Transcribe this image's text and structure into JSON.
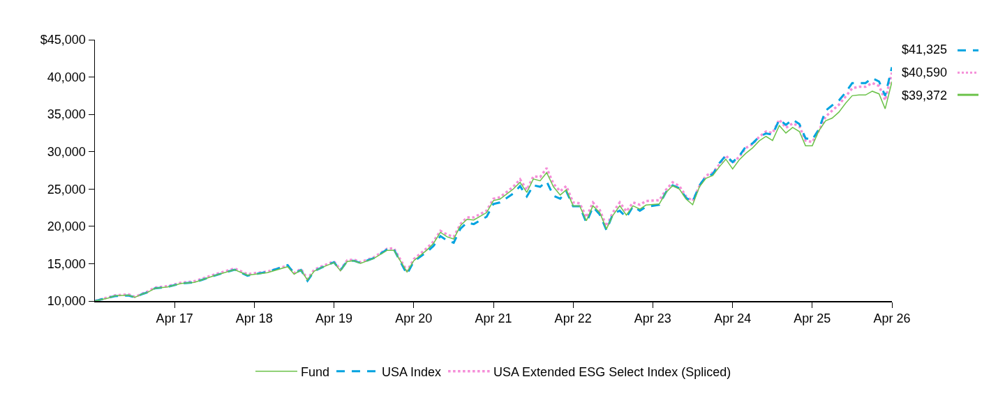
{
  "chart_data": {
    "type": "line",
    "x": [
      "2016-04",
      "2016-06",
      "2016-07",
      "2016-09",
      "2016-10",
      "2016-11",
      "2016-12",
      "2017-01",
      "2017-03",
      "2017-05",
      "2017-07",
      "2017-08",
      "2017-10",
      "2018-01",
      "2018-03",
      "2018-06",
      "2018-09",
      "2018-10",
      "2018-11",
      "2018-12",
      "2019-01",
      "2019-02",
      "2019-04",
      "2019-05",
      "2019-06",
      "2019-07",
      "2019-08",
      "2019-10",
      "2019-12",
      "2020-01",
      "2020-03",
      "2020-04",
      "2020-06",
      "2020-07",
      "2020-08",
      "2020-09",
      "2020-10",
      "2020-11",
      "2020-12",
      "2021-01",
      "2021-03",
      "2021-04",
      "2021-05",
      "2021-07",
      "2021-08",
      "2021-09",
      "2021-10",
      "2021-11",
      "2021-12",
      "2022-01",
      "2022-02",
      "2022-03",
      "2022-04",
      "2022-05",
      "2022-06",
      "2022-07",
      "2022-08",
      "2022-09",
      "2022-10",
      "2022-11",
      "2022-12",
      "2023-01",
      "2023-02",
      "2023-03",
      "2023-05",
      "2023-06",
      "2023-07",
      "2023-08",
      "2023-09",
      "2023-10",
      "2023-11",
      "2023-12",
      "2024-01",
      "2024-02",
      "2024-03",
      "2024-04",
      "2024-05",
      "2024-06",
      "2024-07",
      "2024-08",
      "2024-09",
      "2024-10",
      "2024-11",
      "2024-12",
      "2025-01",
      "2025-02",
      "2025-03",
      "2025-04",
      "2025-05",
      "2025-06",
      "2025-07",
      "2025-08",
      "2025-09",
      "2025-10",
      "2025-11",
      "2025-12",
      "2026-01",
      "2026-02",
      "2026-03",
      "2026-04"
    ],
    "series": [
      {
        "name": "Fund",
        "color": "#6cc24a",
        "line_style": "solid",
        "values": [
          10000,
          10400,
          10700,
          10800,
          10500,
          10900,
          11200,
          11700,
          11900,
          12350,
          12500,
          12800,
          13400,
          14200,
          13450,
          13800,
          14600,
          13600,
          14150,
          12800,
          14000,
          14450,
          15150,
          14050,
          15300,
          15400,
          15050,
          15700,
          16800,
          16800,
          13900,
          15400,
          16850,
          17750,
          19200,
          18600,
          18300,
          20100,
          20950,
          20850,
          21850,
          23450,
          23650,
          25000,
          25900,
          24550,
          26350,
          26100,
          27200,
          25300,
          24200,
          24900,
          22750,
          22750,
          20750,
          22750,
          21850,
          19650,
          21500,
          22750,
          21500,
          22750,
          22300,
          22850,
          23000,
          24550,
          25450,
          25000,
          23650,
          22900,
          25300,
          26450,
          26800,
          28000,
          29000,
          27700,
          28900,
          29800,
          30500,
          31450,
          32050,
          31500,
          33500,
          32500,
          33250,
          32700,
          30800,
          30800,
          32800,
          34150,
          34500,
          35300,
          36500,
          37500,
          37600,
          37600,
          38100,
          37750,
          35750,
          39372
        ]
      },
      {
        "name": "USA Index",
        "color": "#00a3e0",
        "line_style": "dashed",
        "values": [
          10000,
          10450,
          10650,
          10750,
          10500,
          10900,
          11200,
          11700,
          11900,
          12350,
          12500,
          12800,
          13400,
          14200,
          13400,
          13900,
          14800,
          13700,
          14150,
          12700,
          14000,
          14450,
          15200,
          14100,
          15350,
          15400,
          15100,
          15750,
          16900,
          16900,
          13600,
          15300,
          16600,
          17400,
          18700,
          18100,
          17800,
          19700,
          20500,
          20300,
          21300,
          23000,
          23200,
          24400,
          25400,
          24000,
          25500,
          25300,
          26000,
          24100,
          23700,
          24700,
          22700,
          22700,
          20500,
          22600,
          21600,
          19500,
          21700,
          22100,
          21200,
          22700,
          22100,
          22600,
          22900,
          24600,
          25500,
          25100,
          23800,
          23300,
          25500,
          26700,
          27000,
          28500,
          29500,
          28600,
          29400,
          30700,
          31100,
          32000,
          32450,
          32300,
          34300,
          33600,
          34300,
          33700,
          31800,
          31600,
          33000,
          35500,
          36200,
          36850,
          37950,
          39200,
          39200,
          39200,
          39850,
          39400,
          37500,
          41325
        ]
      },
      {
        "name": "USA Extended ESG Select Index (Spliced)",
        "color": "#f58ed8",
        "line_style": "dotted",
        "values": [
          10000,
          10500,
          10750,
          10900,
          10550,
          10950,
          11300,
          11800,
          12000,
          12450,
          12650,
          12950,
          13550,
          14350,
          13600,
          13950,
          14750,
          13750,
          14300,
          12950,
          14200,
          14600,
          15300,
          14200,
          15450,
          15550,
          15200,
          15850,
          17000,
          17050,
          14000,
          15600,
          17100,
          18000,
          19400,
          18900,
          18600,
          20300,
          21200,
          21200,
          22100,
          23700,
          23900,
          25300,
          26300,
          24900,
          26700,
          26600,
          27800,
          25700,
          24700,
          25400,
          23200,
          23100,
          21200,
          23200,
          22200,
          20000,
          21900,
          23200,
          22000,
          23200,
          22900,
          23400,
          23500,
          24900,
          25900,
          25400,
          24000,
          23400,
          25400,
          26800,
          27200,
          28300,
          29500,
          28500,
          29300,
          30500,
          31000,
          32000,
          32700,
          32500,
          34300,
          33200,
          33800,
          33400,
          31500,
          31300,
          32800,
          34700,
          35500,
          36300,
          37400,
          38500,
          38700,
          38700,
          39200,
          38800,
          36900,
          40590
        ]
      }
    ],
    "xlim": [
      "2016-04",
      "2026-04"
    ],
    "xticks": [
      {
        "value": "2017-04",
        "label": "Apr 17"
      },
      {
        "value": "2018-04",
        "label": "Apr 18"
      },
      {
        "value": "2019-04",
        "label": "Apr 19"
      },
      {
        "value": "2020-04",
        "label": "Apr 20"
      },
      {
        "value": "2021-04",
        "label": "Apr 21"
      },
      {
        "value": "2022-04",
        "label": "Apr 22"
      },
      {
        "value": "2023-04",
        "label": "Apr 23"
      },
      {
        "value": "2024-04",
        "label": "Apr 24"
      },
      {
        "value": "2025-04",
        "label": "Apr 25"
      },
      {
        "value": "2026-04",
        "label": "Apr 26"
      }
    ],
    "ylim": [
      10000,
      45000
    ],
    "yticks": [
      {
        "value": 10000,
        "label": "10,000"
      },
      {
        "value": 15000,
        "label": "15,000"
      },
      {
        "value": 20000,
        "label": "20,000"
      },
      {
        "value": 25000,
        "label": "25,000"
      },
      {
        "value": 30000,
        "label": "30,000"
      },
      {
        "value": 35000,
        "label": "35,000"
      },
      {
        "value": 40000,
        "label": "40,000"
      },
      {
        "value": 45000,
        "label": "$45,000"
      }
    ],
    "annotations": [
      {
        "text": "$41,325",
        "x": "2026-04",
        "y": 41325
      },
      {
        "text": "$40,590",
        "x": "2026-04",
        "y": 40590
      },
      {
        "text": "$39,372",
        "x": "2026-04",
        "y": 39372
      }
    ],
    "grid": false,
    "legend": "bottom"
  }
}
